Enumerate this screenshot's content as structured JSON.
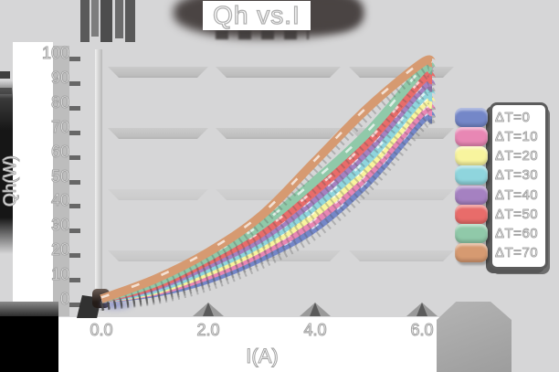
{
  "chart_data": {
    "type": "line",
    "title": "Qh vs.I",
    "xlabel": "I(A)",
    "ylabel": "Qh(W)",
    "x_ticks": [
      "0.0",
      "2.0",
      "4.0",
      "6.0"
    ],
    "x_tick_values": [
      0,
      2,
      4,
      6
    ],
    "y_ticks": [
      "100",
      "90",
      "80",
      "70",
      "60",
      "50",
      "40",
      "30",
      "20",
      "10",
      "0"
    ],
    "y_tick_values": [
      100,
      90,
      80,
      70,
      60,
      50,
      40,
      30,
      20,
      10,
      0
    ],
    "xlim": [
      0,
      6.5
    ],
    "ylim": [
      0,
      100
    ],
    "grid": true,
    "legend_position": "right",
    "x": [
      0,
      1,
      2,
      3,
      4,
      5,
      6
    ],
    "series": [
      {
        "name": "ΔT=0",
        "color": "#7487c8",
        "values": [
          0,
          2.5,
          8,
          17,
          29,
          48,
          73
        ]
      },
      {
        "name": "ΔT=10",
        "color": "#e887b4",
        "values": [
          0,
          3,
          9.5,
          19,
          32,
          51,
          76
        ]
      },
      {
        "name": "ΔT=20",
        "color": "#f8f49e",
        "values": [
          0,
          3.5,
          11,
          21,
          35,
          54,
          79
        ]
      },
      {
        "name": "ΔT=30",
        "color": "#8fd5dd",
        "values": [
          0,
          4,
          12.5,
          23,
          38,
          57,
          82
        ]
      },
      {
        "name": "ΔT=40",
        "color": "#a581c1",
        "values": [
          0,
          5,
          14,
          25,
          41,
          61,
          86
        ]
      },
      {
        "name": "ΔT=50",
        "color": "#e86c6a",
        "values": [
          0,
          5.5,
          15.5,
          27,
          44,
          64,
          89
        ]
      },
      {
        "name": "ΔT=60",
        "color": "#90c9a9",
        "values": [
          0,
          6.5,
          17,
          30,
          48,
          68,
          93
        ]
      },
      {
        "name": "ΔT=70",
        "color": "#d69a71",
        "values": [
          0,
          8,
          19,
          34,
          56,
          78,
          96
        ]
      }
    ]
  },
  "decor": {
    "background_color": "#d6d6d7",
    "grid_band_color": "#c2c2c2",
    "shadow_color": "#4a4443",
    "text_color": "#ffffff",
    "text_outline_color": "#a3a3a3"
  }
}
